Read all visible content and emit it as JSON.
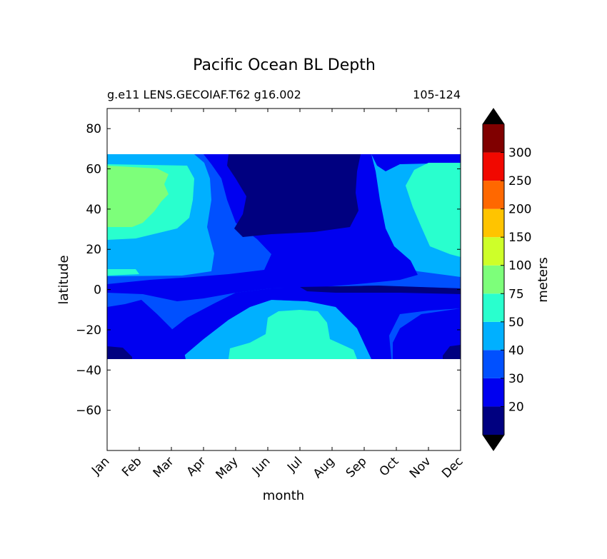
{
  "chart_data": {
    "type": "heatmap",
    "title": "Pacific Ocean BL Depth",
    "subtitle_left": "g.e11 LENS.GECOIAF.T62 g16.002",
    "subtitle_right": "105-124",
    "xlabel": "month",
    "ylabel": "latitude",
    "x_categories": [
      "Jan",
      "Feb",
      "Mar",
      "Apr",
      "May",
      "Jun",
      "Jul",
      "Aug",
      "Sep",
      "Oct",
      "Nov",
      "Dec"
    ],
    "ylim": [
      -80,
      90
    ],
    "y_ticks": [
      80,
      60,
      40,
      20,
      0,
      -20,
      -40,
      -60
    ],
    "y_tick_labels": [
      "80",
      "60",
      "40",
      "20",
      "0",
      "−20",
      "−40",
      "−60"
    ],
    "data_lat_range": [
      -34,
      67
    ],
    "colorbar": {
      "label": "meters",
      "levels": [
        10,
        20,
        30,
        40,
        50,
        75,
        100,
        150,
        200,
        250,
        300,
        350
      ],
      "tick_labels": [
        "20",
        "30",
        "40",
        "50",
        "75",
        "100",
        "150",
        "200",
        "250",
        "300"
      ],
      "extend": "both",
      "colors": [
        "#000080",
        "#0000f0",
        "#0050ff",
        "#00b0ff",
        "#29ffce",
        "#7dff7a",
        "#ceff29",
        "#ffc400",
        "#ff6800",
        "#f10800",
        "#800000"
      ],
      "under_color": "#000000",
      "over_color": "#000000"
    },
    "contour_regions": [
      {
        "range": "30-40",
        "description": "background band across most latitudes and months"
      },
      {
        "range": "20-30",
        "description": "northern summer band and equatorial strip"
      },
      {
        "range": "10-20",
        "description": "northern summer core 26N-67N May-Sep; southern winter corners"
      },
      {
        "range": "40-50",
        "description": "northern winter mid-latitudes and southern winter subtropics"
      },
      {
        "range": "50-75",
        "description": "northern winter 30N-62N; southern Jun-Sep -34 to -10"
      },
      {
        "range": "75-100",
        "description": "northern Jan-Feb 32N-62N"
      }
    ]
  }
}
